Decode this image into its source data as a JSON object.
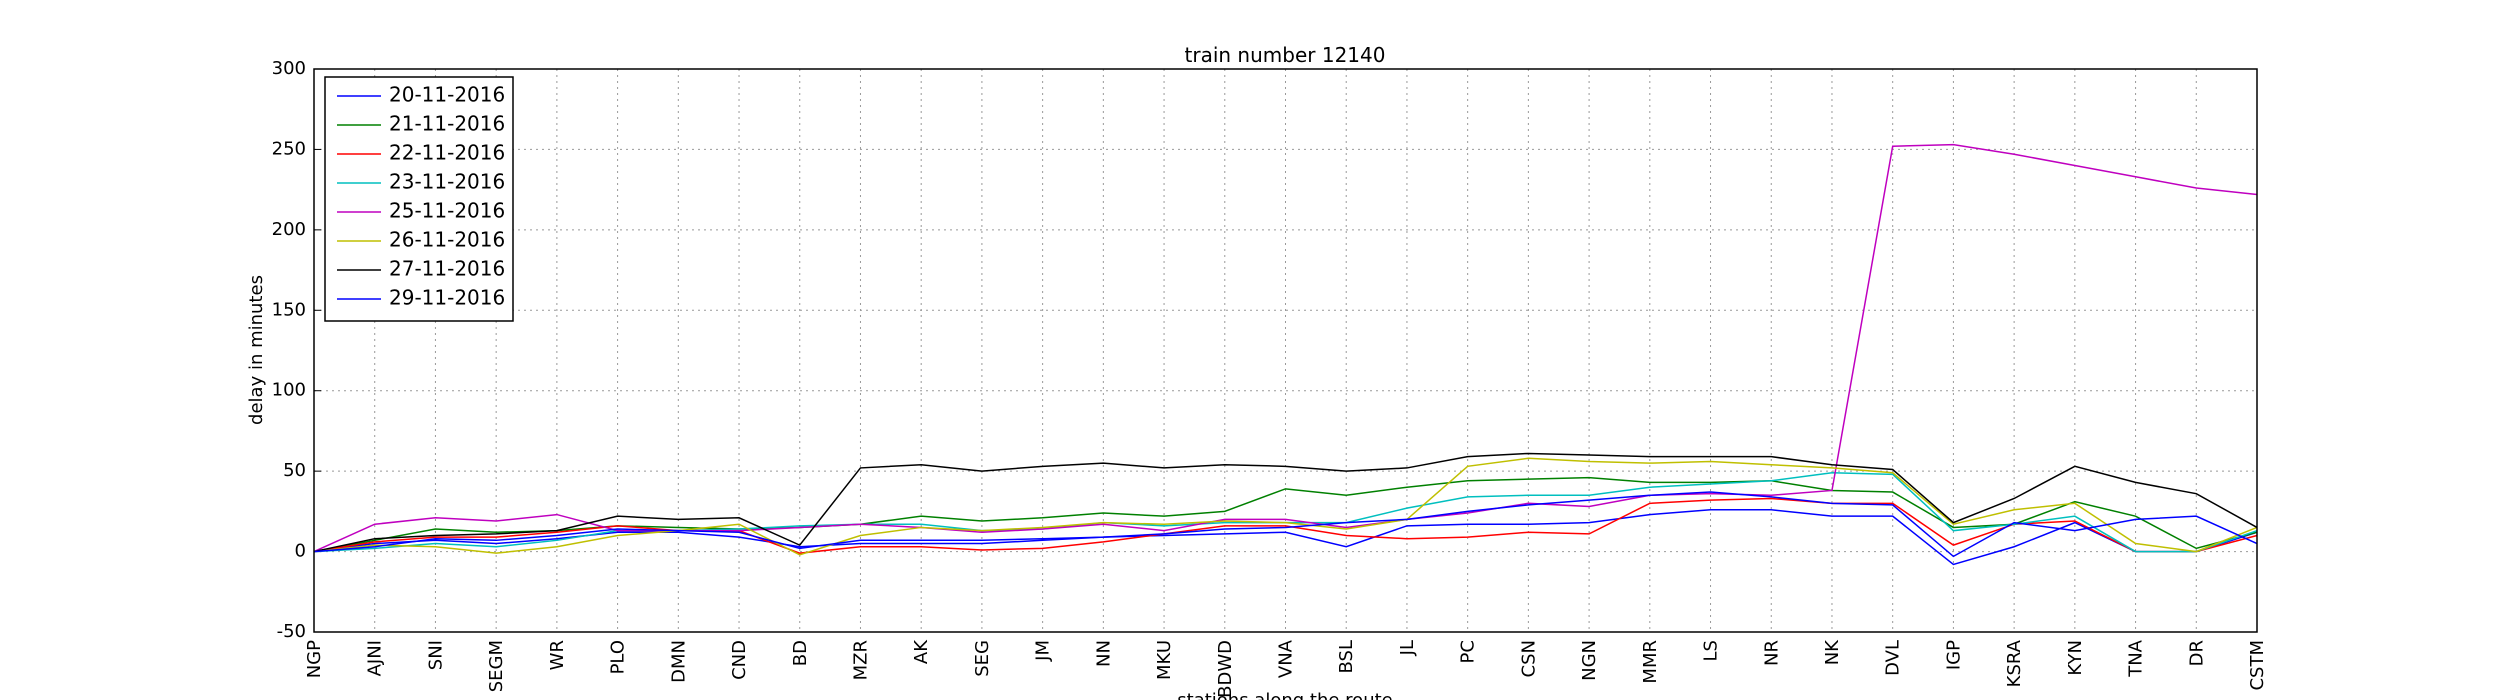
{
  "chart_data": {
    "type": "line",
    "title": "train number 12140",
    "xlabel": "stations along the route",
    "ylabel": "delay in minutes",
    "categories": [
      "NGP",
      "AJNI",
      "SNI",
      "SEGM",
      "WR",
      "PLO",
      "DMN",
      "CND",
      "BD",
      "MZR",
      "AK",
      "SEG",
      "JM",
      "NN",
      "MKU",
      "BDWD",
      "VNA",
      "BSL",
      "JL",
      "PC",
      "CSN",
      "NGN",
      "MMR",
      "LS",
      "NR",
      "NK",
      "DVL",
      "IGP",
      "KSRA",
      "KYN",
      "TNA",
      "DR",
      "CSTM"
    ],
    "series": [
      {
        "name": "20-11-2016",
        "color": "#0000ff",
        "values": [
          0,
          5,
          7,
          5,
          8,
          12,
          12,
          9,
          3,
          5,
          5,
          5,
          7,
          9,
          10,
          11,
          12,
          3,
          16,
          17,
          17,
          18,
          23,
          26,
          26,
          22,
          22,
          -8,
          3,
          18,
          0,
          0,
          12
        ]
      },
      {
        "name": "21-11-2016",
        "color": "#008000",
        "values": [
          0,
          7,
          14,
          12,
          13,
          16,
          15,
          14,
          15,
          17,
          22,
          19,
          21,
          24,
          22,
          25,
          39,
          35,
          40,
          44,
          45,
          46,
          43,
          43,
          44,
          38,
          37,
          15,
          17,
          31,
          22,
          2,
          12
        ]
      },
      {
        "name": "22-11-2016",
        "color": "#ff0000",
        "values": [
          0,
          6,
          9,
          9,
          12,
          16,
          13,
          13,
          -1,
          3,
          3,
          1,
          2,
          6,
          11,
          16,
          16,
          10,
          8,
          9,
          12,
          11,
          30,
          32,
          33,
          30,
          30,
          4,
          17,
          19,
          0,
          0,
          10
        ]
      },
      {
        "name": "23-11-2016",
        "color": "#00bfbf",
        "values": [
          0,
          2,
          5,
          3,
          7,
          13,
          13,
          14,
          16,
          17,
          17,
          13,
          14,
          18,
          16,
          18,
          18,
          18,
          27,
          34,
          35,
          35,
          40,
          42,
          44,
          49,
          48,
          13,
          17,
          22,
          0,
          0,
          13
        ]
      },
      {
        "name": "25-11-2016",
        "color": "#bf00bf",
        "values": [
          0,
          17,
          21,
          19,
          23,
          13,
          13,
          13,
          15,
          17,
          15,
          12,
          14,
          17,
          13,
          20,
          20,
          15,
          20,
          24,
          30,
          28,
          35,
          36,
          35,
          38,
          252,
          253,
          247,
          240,
          233,
          226,
          222
        ]
      },
      {
        "name": "26-11-2016",
        "color": "#bfbf00",
        "values": [
          0,
          4,
          3,
          -1,
          3,
          10,
          13,
          17,
          -2,
          10,
          15,
          13,
          15,
          18,
          17,
          19,
          18,
          14,
          20,
          53,
          58,
          56,
          55,
          56,
          54,
          52,
          49,
          17,
          26,
          30,
          5,
          0,
          15
        ]
      },
      {
        "name": "27-11-2016",
        "color": "#000000",
        "values": [
          0,
          8,
          10,
          11,
          13,
          22,
          20,
          21,
          4,
          52,
          54,
          50,
          53,
          55,
          52,
          54,
          53,
          50,
          52,
          59,
          61,
          60,
          59,
          59,
          59,
          54,
          51,
          18,
          33,
          53,
          43,
          36,
          15
        ]
      },
      {
        "name": "29-11-2016",
        "color": "#0000ff",
        "values": [
          0,
          3,
          8,
          7,
          10,
          14,
          13,
          12,
          2,
          7,
          7,
          7,
          8,
          9,
          11,
          14,
          15,
          18,
          20,
          25,
          29,
          32,
          35,
          37,
          34,
          30,
          29,
          -3,
          18,
          13,
          20,
          22,
          5
        ]
      }
    ],
    "ylim": [
      -50,
      300
    ],
    "yticks": [
      -50,
      0,
      50,
      100,
      150,
      200,
      250,
      300
    ],
    "grid": true,
    "legend": "upper left"
  }
}
